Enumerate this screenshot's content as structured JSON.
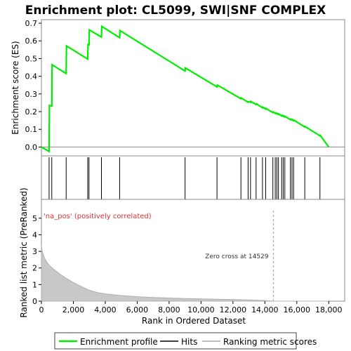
{
  "chart_data": {
    "type": "line",
    "title": "Enrichment plot: CL5099, SWI|SNF COMPLEX",
    "es_panel": {
      "ylabel": "Enrichment score (ES)",
      "ylim": [
        -0.05,
        0.72
      ],
      "yticks": [
        "0.0",
        "0.1",
        "0.2",
        "0.3",
        "0.4",
        "0.5",
        "0.6",
        "0.7"
      ],
      "ytick_values": [
        0.0,
        0.1,
        0.2,
        0.3,
        0.4,
        0.5,
        0.6,
        0.7
      ],
      "series": [
        {
          "name": "Enrichment profile",
          "color": "#00ee00",
          "x": [
            0,
            480,
            500,
            650,
            670,
            1550,
            1570,
            2900,
            2920,
            2980,
            3000,
            3760,
            3780,
            4900,
            4920,
            9000,
            9020,
            11000,
            11020,
            12500,
            12520,
            12950,
            12970,
            13100,
            13120,
            13450,
            13470,
            13850,
            13870,
            14050,
            14070,
            14500,
            14520,
            14650,
            14670,
            14750,
            14770,
            14850,
            14870,
            15050,
            15070,
            15150,
            15170,
            15250,
            15270,
            15600,
            15620,
            15700,
            15720,
            15800,
            15820,
            16500,
            16520,
            17450,
            17470,
            18000
          ],
          "y": [
            0.0,
            -0.025,
            0.235,
            0.232,
            0.465,
            0.415,
            0.572,
            0.497,
            0.58,
            0.578,
            0.662,
            0.622,
            0.682,
            0.618,
            0.658,
            0.43,
            0.447,
            0.34,
            0.35,
            0.273,
            0.277,
            0.253,
            0.257,
            0.253,
            0.258,
            0.24,
            0.244,
            0.222,
            0.226,
            0.214,
            0.218,
            0.195,
            0.198,
            0.19,
            0.193,
            0.188,
            0.19,
            0.184,
            0.187,
            0.176,
            0.179,
            0.174,
            0.177,
            0.17,
            0.173,
            0.154,
            0.157,
            0.152,
            0.155,
            0.149,
            0.152,
            0.113,
            0.116,
            0.063,
            0.066,
            0.0
          ]
        }
      ]
    },
    "hits": {
      "name": "Hits",
      "x": [
        480,
        650,
        1550,
        2900,
        2980,
        3760,
        4900,
        9000,
        11000,
        12500,
        12950,
        13100,
        13450,
        13850,
        14050,
        14500,
        14650,
        14750,
        14850,
        15050,
        15150,
        15250,
        15600,
        15700,
        15800,
        16500,
        17450
      ]
    },
    "ranking": {
      "name": "Ranking metric scores",
      "ylabel": "Ranked list metric (PreRanked)",
      "xlabel": "Rank in Ordered Dataset",
      "ylim": [
        0,
        5.5
      ],
      "yticks": [
        "0",
        "1",
        "2",
        "3",
        "4",
        "5"
      ],
      "ytick_values": [
        0,
        1,
        2,
        3,
        4,
        5
      ],
      "xlim": [
        0,
        19000
      ],
      "xticks": [
        "0",
        "2,000",
        "4,000",
        "6,000",
        "8,000",
        "10,000",
        "12,000",
        "14,000",
        "16,000",
        "18,000"
      ],
      "xtick_values": [
        0,
        2000,
        4000,
        6000,
        8000,
        10000,
        12000,
        14000,
        16000,
        18000
      ],
      "x": [
        0,
        50,
        150,
        300,
        500,
        800,
        1200,
        1600,
        2000,
        2500,
        3000,
        3500,
        4000,
        5000,
        6000,
        7000,
        8000,
        9000,
        10000,
        11000,
        12000,
        13000,
        14000,
        14529,
        15000,
        16000,
        17000,
        18000
      ],
      "y": [
        3.4,
        3.0,
        2.7,
        2.4,
        2.15,
        1.9,
        1.6,
        1.35,
        1.12,
        0.88,
        0.66,
        0.52,
        0.44,
        0.34,
        0.27,
        0.22,
        0.19,
        0.16,
        0.14,
        0.12,
        0.1,
        0.07,
        0.04,
        0.0,
        0.0,
        0.0,
        0.0,
        0.0
      ],
      "pos_label": "'na_pos' (positively correlated)",
      "zero_cross_label": "Zero cross at 14529",
      "zero_cross": 14529
    },
    "heat_bar": {
      "colors": [
        "#cc0000",
        "#e03030",
        "#f05050",
        "#f47070",
        "#f89090",
        "#f9b8d8"
      ],
      "breaks": [
        0,
        400,
        1300,
        4500,
        6000,
        9000,
        18000
      ]
    },
    "legend": {
      "placement": "bottom",
      "items": [
        {
          "label": "Enrichment profile",
          "color": "#00ee00",
          "kind": "line"
        },
        {
          "label": "Hits",
          "color": "#000000",
          "kind": "line"
        },
        {
          "label": "Ranking metric scores",
          "color": "#bbbbbb",
          "kind": "line"
        }
      ]
    }
  }
}
